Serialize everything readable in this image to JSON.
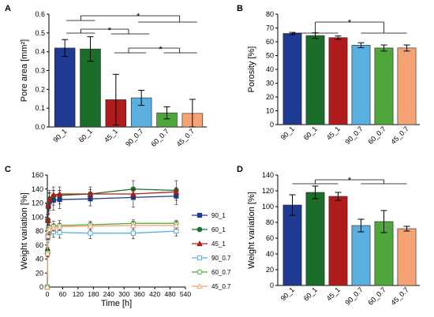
{
  "chart_data": [
    {
      "panel": "A",
      "type": "bar",
      "ylabel": "Pore area [mm²]",
      "ylim": [
        0,
        0.6
      ],
      "yticks": [
        "0.0",
        "0.1",
        "0.2",
        "0.3",
        "0.4",
        "0.5",
        "0.6"
      ],
      "categories": [
        "90_1",
        "60_1",
        "45_1",
        "90_0.7",
        "60_0.7",
        "45_0.7"
      ],
      "values": [
        0.42,
        0.415,
        0.145,
        0.155,
        0.075,
        0.072
      ],
      "errors": [
        0.045,
        0.065,
        0.135,
        0.04,
        0.032,
        0.075
      ],
      "significance": [
        "*",
        "*",
        "*"
      ]
    },
    {
      "panel": "B",
      "type": "bar",
      "ylabel": "Porosity [%]",
      "ylim": [
        0,
        80
      ],
      "yticks": [
        "0",
        "10",
        "20",
        "30",
        "40",
        "50",
        "60",
        "70",
        "80"
      ],
      "categories": [
        "90_1",
        "60_1",
        "45_1",
        "90_0.7",
        "60_0.7",
        "45_0.7"
      ],
      "values": [
        66,
        64.5,
        63,
        57.5,
        55.5,
        55.5
      ],
      "errors": [
        0.8,
        2,
        1.2,
        1.8,
        2.2,
        2.2
      ],
      "significance": [
        "*"
      ]
    },
    {
      "panel": "C",
      "type": "line",
      "ylabel": "Weight variation [%]",
      "xlabel": "Time [h]",
      "xlim": [
        0,
        540
      ],
      "ylim": [
        0,
        160
      ],
      "xticks": [
        "0",
        "60",
        "120",
        "180",
        "240",
        "300",
        "360",
        "420",
        "480",
        "540"
      ],
      "yticks": [
        "0",
        "20",
        "40",
        "60",
        "80",
        "100",
        "120",
        "140",
        "160"
      ],
      "series": [
        {
          "name": "90_1",
          "x": [
            0,
            1,
            2,
            4,
            8,
            24,
            48,
            168,
            336,
            504
          ],
          "y": [
            0,
            50,
            95,
            115,
            122,
            124,
            125,
            126,
            128,
            130
          ],
          "errors": [
            0,
            5,
            8,
            10,
            12,
            14,
            13,
            10,
            14,
            12
          ]
        },
        {
          "name": "60_1",
          "x": [
            0,
            1,
            2,
            4,
            8,
            24,
            48,
            168,
            336,
            504
          ],
          "y": [
            0,
            52,
            96,
            118,
            126,
            130,
            131,
            133,
            140,
            138
          ],
          "errors": [
            0,
            5,
            8,
            10,
            12,
            13,
            12,
            10,
            12,
            14
          ]
        },
        {
          "name": "45_1",
          "x": [
            0,
            1,
            2,
            4,
            8,
            24,
            48,
            168,
            336,
            504
          ],
          "y": [
            0,
            51,
            96,
            117,
            125,
            132,
            133,
            133,
            133,
            136
          ],
          "errors": [
            0,
            5,
            8,
            9,
            10,
            6,
            5,
            6,
            6,
            5
          ]
        },
        {
          "name": "90_0.7",
          "x": [
            0,
            1,
            2,
            4,
            8,
            24,
            48,
            168,
            336,
            504
          ],
          "y": [
            0,
            48,
            70,
            76,
            78,
            79,
            78,
            77,
            77,
            80
          ],
          "errors": [
            0,
            5,
            6,
            7,
            8,
            8,
            8,
            8,
            8,
            7
          ]
        },
        {
          "name": "60_0.7",
          "x": [
            0,
            1,
            2,
            4,
            8,
            24,
            48,
            168,
            336,
            504
          ],
          "y": [
            0,
            49,
            75,
            83,
            85,
            87,
            88,
            89,
            91,
            91
          ],
          "errors": [
            0,
            5,
            6,
            7,
            7,
            7,
            7,
            5,
            5,
            4
          ]
        },
        {
          "name": "45_0.7",
          "x": [
            0,
            1,
            2,
            4,
            8,
            24,
            48,
            168,
            336,
            504
          ],
          "y": [
            0,
            48,
            73,
            80,
            83,
            85,
            86,
            87,
            88,
            88
          ],
          "errors": [
            0,
            5,
            5,
            5,
            5,
            5,
            5,
            5,
            5,
            5
          ]
        }
      ]
    },
    {
      "panel": "D",
      "type": "bar",
      "ylabel": "Weight variation [%]",
      "ylim": [
        0,
        140
      ],
      "yticks": [
        "0",
        "20",
        "40",
        "60",
        "80",
        "100",
        "120",
        "140"
      ],
      "categories": [
        "90_1",
        "60_1",
        "45_1",
        "90_0.7",
        "60_0.7",
        "45_0.7"
      ],
      "values": [
        102,
        118,
        113,
        76,
        81,
        72
      ],
      "errors": [
        13,
        8,
        5,
        8,
        14,
        3
      ],
      "significance": [
        "*"
      ]
    }
  ],
  "colors": {
    "90_1": "#1f3a93",
    "60_1": "#1b6e2a",
    "45_1": "#b01c1c",
    "90_0.7": "#5aaee0",
    "60_0.7": "#4fa63a",
    "45_0.7": "#f5a274"
  },
  "markers": {
    "90_1": "square",
    "60_1": "circle",
    "45_1": "triangle",
    "90_0.7": "square",
    "60_0.7": "circle",
    "45_0.7": "triangle"
  }
}
